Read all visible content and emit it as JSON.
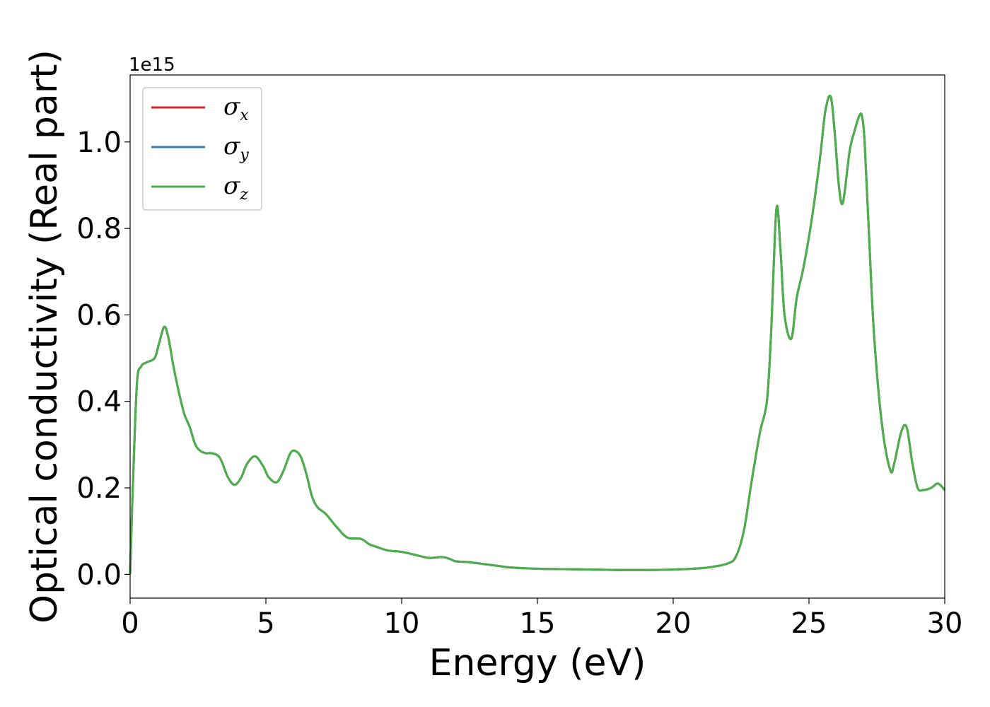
{
  "chart_data": {
    "type": "line",
    "xlabel": "Energy (eV)",
    "ylabel": "Optical conductivity (Real part)",
    "y_offset_label": "1e15",
    "xlim": [
      0,
      30
    ],
    "ylim": [
      -0.055,
      1.155
    ],
    "x_ticks": [
      0,
      5,
      10,
      15,
      20,
      25,
      30
    ],
    "x_tick_labels": [
      "0",
      "5",
      "10",
      "15",
      "20",
      "25",
      "30"
    ],
    "y_ticks": [
      0.0,
      0.2,
      0.4,
      0.6,
      0.8,
      1.0
    ],
    "y_tick_labels": [
      "0.0",
      "0.2",
      "0.4",
      "0.6",
      "0.8",
      "1.0"
    ],
    "grid": false,
    "legend_position": "top-left",
    "series": [
      {
        "name": "σ",
        "subscript": "x",
        "color": "#d62728"
      },
      {
        "name": "σ",
        "subscript": "y",
        "color": "#377eb8"
      },
      {
        "name": "σ",
        "subscript": "z",
        "color": "#4daf4a"
      }
    ],
    "x": [
      0.0,
      0.1,
      0.25,
      0.4,
      0.6,
      0.9,
      1.05,
      1.25,
      1.4,
      1.6,
      1.8,
      2.0,
      2.2,
      2.4,
      2.6,
      2.8,
      3.0,
      3.3,
      3.6,
      3.85,
      4.1,
      4.3,
      4.6,
      4.9,
      5.1,
      5.4,
      5.65,
      5.9,
      6.1,
      6.3,
      6.5,
      6.7,
      6.9,
      7.2,
      7.6,
      8.0,
      8.5,
      8.8,
      9.1,
      9.5,
      10.0,
      10.5,
      11.0,
      11.5,
      11.8,
      12.0,
      12.5,
      13.0,
      13.5,
      14.0,
      15.0,
      16.0,
      17.0,
      18.0,
      19.0,
      20.0,
      21.0,
      21.5,
      22.0,
      22.3,
      22.6,
      22.9,
      23.2,
      23.45,
      23.6,
      23.8,
      23.95,
      24.1,
      24.35,
      24.55,
      24.8,
      25.1,
      25.4,
      25.6,
      25.8,
      25.95,
      26.1,
      26.25,
      26.5,
      26.7,
      26.85,
      26.95,
      27.05,
      27.2,
      27.4,
      27.7,
      28.0,
      28.15,
      28.4,
      28.6,
      28.8,
      29.0,
      29.2,
      29.5,
      29.75,
      30.0
    ],
    "y": [
      0.0,
      0.2,
      0.44,
      0.48,
      0.49,
      0.5,
      0.53,
      0.572,
      0.55,
      0.48,
      0.42,
      0.37,
      0.34,
      0.3,
      0.285,
      0.28,
      0.28,
      0.27,
      0.225,
      0.207,
      0.225,
      0.255,
      0.273,
      0.25,
      0.225,
      0.213,
      0.24,
      0.28,
      0.285,
      0.27,
      0.23,
      0.18,
      0.155,
      0.14,
      0.11,
      0.085,
      0.082,
      0.07,
      0.063,
      0.055,
      0.052,
      0.045,
      0.038,
      0.04,
      0.035,
      0.03,
      0.028,
      0.024,
      0.02,
      0.016,
      0.013,
      0.012,
      0.011,
      0.01,
      0.01,
      0.011,
      0.014,
      0.018,
      0.025,
      0.04,
      0.1,
      0.22,
      0.33,
      0.4,
      0.55,
      0.845,
      0.75,
      0.6,
      0.545,
      0.64,
      0.71,
      0.82,
      0.96,
      1.07,
      1.105,
      1.02,
      0.9,
      0.86,
      0.98,
      1.03,
      1.06,
      1.06,
      1.0,
      0.8,
      0.55,
      0.34,
      0.24,
      0.26,
      0.33,
      0.34,
      0.26,
      0.2,
      0.195,
      0.2,
      0.21,
      0.195
    ]
  }
}
